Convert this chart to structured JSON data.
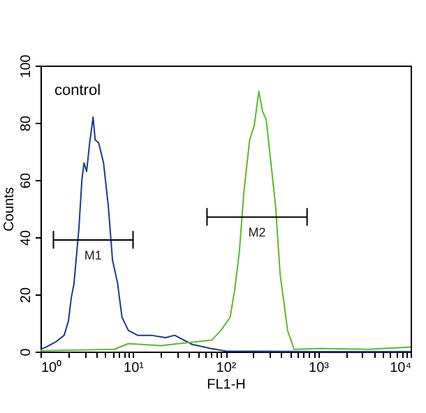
{
  "chart_data": {
    "type": "line",
    "xlabel": "FL1-H",
    "ylabel": "Counts",
    "log": "x",
    "grid": false,
    "legend": false,
    "xlim": [
      1,
      10000
    ],
    "ylim": [
      0,
      100
    ],
    "xticks": [
      {
        "value": 1,
        "label": "10⁰"
      },
      {
        "value": 2,
        "label": null
      },
      {
        "value": 3,
        "label": null
      },
      {
        "value": 4,
        "label": null
      },
      {
        "value": 5,
        "label": null
      },
      {
        "value": 6,
        "label": null
      },
      {
        "value": 7,
        "label": null
      },
      {
        "value": 8,
        "label": null
      },
      {
        "value": 9,
        "label": null
      },
      {
        "value": 10,
        "label": "10¹"
      },
      {
        "value": 20,
        "label": null
      },
      {
        "value": 30,
        "label": null
      },
      {
        "value": 40,
        "label": null
      },
      {
        "value": 50,
        "label": null
      },
      {
        "value": 60,
        "label": null
      },
      {
        "value": 70,
        "label": null
      },
      {
        "value": 80,
        "label": null
      },
      {
        "value": 90,
        "label": null
      },
      {
        "value": 100,
        "label": "10²"
      },
      {
        "value": 200,
        "label": null
      },
      {
        "value": 300,
        "label": null
      },
      {
        "value": 400,
        "label": null
      },
      {
        "value": 500,
        "label": null
      },
      {
        "value": 600,
        "label": null
      },
      {
        "value": 700,
        "label": null
      },
      {
        "value": 800,
        "label": null
      },
      {
        "value": 900,
        "label": null
      },
      {
        "value": 1000,
        "label": "10³"
      },
      {
        "value": 2000,
        "label": null
      },
      {
        "value": 3000,
        "label": null
      },
      {
        "value": 4000,
        "label": null
      },
      {
        "value": 5000,
        "label": null
      },
      {
        "value": 6000,
        "label": null
      },
      {
        "value": 7000,
        "label": null
      },
      {
        "value": 8000,
        "label": null
      },
      {
        "value": 9000,
        "label": null
      },
      {
        "value": 10000,
        "label": "10⁴"
      }
    ],
    "yticks": [
      0,
      20,
      40,
      60,
      80,
      100
    ],
    "series": [
      {
        "name": "control",
        "color": "#1a3a8c",
        "x": [
          1,
          1.15,
          1.45,
          1.8,
          2.0,
          2.15,
          2.3,
          2.6,
          2.8,
          2.95,
          3.15,
          3.4,
          3.7,
          3.9,
          4.25,
          4.8,
          5.4,
          6.0,
          6.8,
          7.6,
          8.9,
          11.2,
          15.8,
          22.4,
          28.2,
          43.7,
          69.2,
          100,
          1000,
          10000
        ],
        "values": [
          0.8,
          1.6,
          3.3,
          5.7,
          10.6,
          18.8,
          23.7,
          43,
          60,
          66,
          63,
          73,
          82,
          74,
          73,
          66,
          51,
          32,
          24,
          12,
          7.4,
          5.7,
          5.7,
          4.9,
          5.7,
          2.5,
          1.1,
          0.2,
          0,
          0
        ]
      },
      {
        "color": "#5cb82e",
        "x": [
          1,
          2.0,
          6.3,
          8.9,
          20,
          43.7,
          70.8,
          89,
          112,
          126,
          141,
          158,
          182,
          204,
          229,
          251,
          275,
          309,
          347,
          389,
          468,
          550,
          1070,
          3470,
          10000
        ],
        "values": [
          0.3,
          0.5,
          0.8,
          2.8,
          2.1,
          3.3,
          4,
          7.4,
          12,
          22,
          35,
          56,
          74,
          79,
          91,
          84,
          81,
          66,
          51,
          27,
          7.4,
          0.8,
          1.1,
          0.8,
          1.6
        ]
      },
      {
        "color": "#000000",
        "x": [
          1.38,
          1.38,
          1.38,
          10,
          10,
          10
        ],
        "values": [
          36,
          42,
          39,
          39,
          42,
          36
        ]
      },
      {
        "color": "#000000",
        "x": [
          63,
          63,
          63,
          760,
          760,
          760
        ],
        "values": [
          44,
          50,
          47,
          47,
          50,
          44
        ]
      }
    ],
    "annotations": [
      {
        "text": "M1",
        "x": 3.7,
        "y": 39
      },
      {
        "text": "M2",
        "x": 219,
        "y": 47
      }
    ]
  }
}
